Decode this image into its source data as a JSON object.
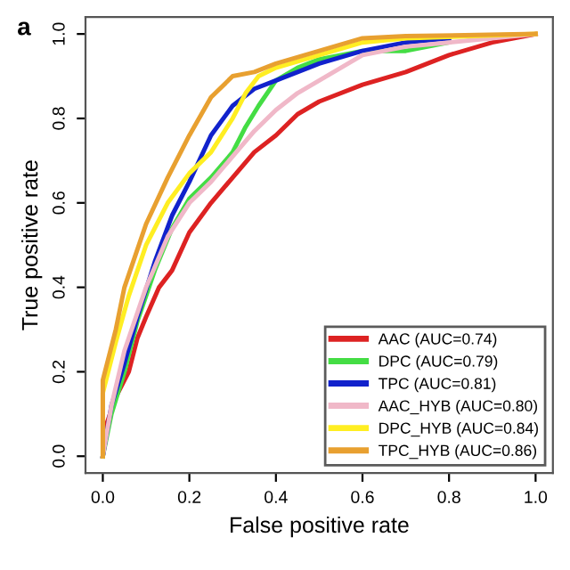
{
  "chart_data": {
    "type": "line",
    "xlabel": "False positive rate",
    "ylabel": "True positive rate",
    "annotations": [
      "a"
    ],
    "xlim": [
      -0.04,
      1.04
    ],
    "ylim": [
      -0.04,
      1.04
    ],
    "xticks": [
      {
        "value": 0,
        "label": "0.0"
      },
      {
        "value": 0.2,
        "label": "0.2"
      },
      {
        "value": 0.4,
        "label": "0.4"
      },
      {
        "value": 0.6,
        "label": "0.6"
      },
      {
        "value": 0.8,
        "label": "0.8"
      },
      {
        "value": 1,
        "label": "1.0"
      }
    ],
    "yticks": [
      {
        "value": 0,
        "label": "0.0"
      },
      {
        "value": 0.2,
        "label": "0.2"
      },
      {
        "value": 0.4,
        "label": "0.4"
      },
      {
        "value": 0.6,
        "label": "0.6"
      },
      {
        "value": 0.8,
        "label": "0.8"
      },
      {
        "value": 1,
        "label": "1.0"
      }
    ],
    "grid": false,
    "legend": "bottom right",
    "line_style": "solid",
    "marker": "none",
    "series": [
      {
        "name": "AAC (AUC=0.74)",
        "color": "#dd2222",
        "x": [
          0,
          0.01,
          0.03,
          0.06,
          0.08,
          0.1,
          0.13,
          0.16,
          0.2,
          0.25,
          0.3,
          0.35,
          0.4,
          0.45,
          0.5,
          0.6,
          0.7,
          0.8,
          0.9,
          1
        ],
        "values": [
          0,
          0.08,
          0.14,
          0.2,
          0.28,
          0.33,
          0.4,
          0.44,
          0.53,
          0.6,
          0.66,
          0.72,
          0.76,
          0.81,
          0.84,
          0.88,
          0.91,
          0.95,
          0.98,
          1
        ]
      },
      {
        "name": "DPC (AUC=0.79)",
        "color": "#44dd44",
        "x": [
          0,
          0.02,
          0.05,
          0.08,
          0.12,
          0.16,
          0.2,
          0.25,
          0.3,
          0.33,
          0.36,
          0.4,
          0.45,
          0.5,
          0.6,
          0.7,
          0.8
        ],
        "values": [
          0,
          0.1,
          0.2,
          0.32,
          0.44,
          0.54,
          0.61,
          0.66,
          0.72,
          0.78,
          0.83,
          0.89,
          0.92,
          0.94,
          0.96,
          0.96,
          0.98
        ]
      },
      {
        "name": "TPC (AUC=0.81)",
        "color": "#1122cc",
        "x": [
          0,
          0.02,
          0.05,
          0.08,
          0.12,
          0.16,
          0.2,
          0.25,
          0.3,
          0.35,
          0.4,
          0.45,
          0.5,
          0.6,
          0.7,
          0.8
        ],
        "values": [
          0,
          0.12,
          0.22,
          0.33,
          0.46,
          0.57,
          0.65,
          0.76,
          0.83,
          0.87,
          0.89,
          0.91,
          0.93,
          0.96,
          0.98,
          0.99
        ]
      },
      {
        "name": "AAC_HYB (AUC=0.80)",
        "color": "#f0b8c8",
        "x": [
          0,
          0.02,
          0.05,
          0.1,
          0.15,
          0.2,
          0.25,
          0.3,
          0.35,
          0.4,
          0.45,
          0.5,
          0.55,
          0.6,
          0.7,
          0.8,
          1
        ],
        "values": [
          0,
          0.12,
          0.25,
          0.4,
          0.52,
          0.6,
          0.65,
          0.71,
          0.77,
          0.82,
          0.86,
          0.89,
          0.92,
          0.95,
          0.97,
          0.98,
          1
        ]
      },
      {
        "name": "DPC_HYB (AUC=0.84)",
        "color": "#ffee22",
        "x": [
          0,
          0,
          0.03,
          0.06,
          0.1,
          0.15,
          0.2,
          0.25,
          0.3,
          0.33,
          0.36,
          0.4,
          0.5,
          0.6,
          0.7,
          1
        ],
        "values": [
          0,
          0.15,
          0.27,
          0.38,
          0.5,
          0.6,
          0.67,
          0.72,
          0.8,
          0.86,
          0.9,
          0.92,
          0.95,
          0.98,
          0.99,
          1
        ]
      },
      {
        "name": "TPC_HYB (AUC=0.86)",
        "color": "#e8a030",
        "x": [
          0,
          0,
          0.03,
          0.05,
          0.1,
          0.15,
          0.2,
          0.25,
          0.3,
          0.35,
          0.4,
          0.5,
          0.6,
          0.7,
          1
        ],
        "values": [
          0,
          0.18,
          0.3,
          0.4,
          0.55,
          0.66,
          0.76,
          0.85,
          0.9,
          0.91,
          0.93,
          0.96,
          0.99,
          0.995,
          1
        ]
      }
    ]
  }
}
